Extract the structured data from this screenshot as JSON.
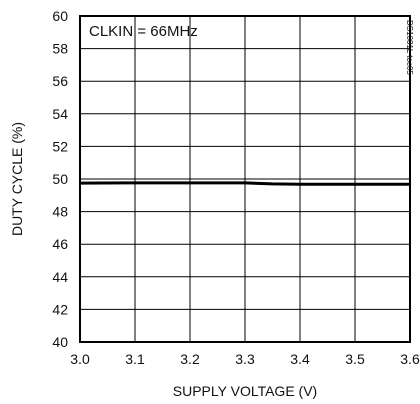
{
  "chart_data": {
    "type": "line",
    "title": "",
    "xlabel": "SUPPLY VOLTAGE (V)",
    "ylabel": "DUTY CYCLE (%)",
    "xlim": [
      3.0,
      3.6
    ],
    "ylim": [
      40,
      60
    ],
    "x_ticks": [
      "3.0",
      "3.1",
      "3.2",
      "3.3",
      "3.4",
      "3.5",
      "3.6"
    ],
    "y_ticks": [
      "40",
      "42",
      "44",
      "46",
      "48",
      "50",
      "52",
      "54",
      "56",
      "58",
      "60"
    ],
    "grid": true,
    "annotation": "CLKIN = 66MHz",
    "watermark": "DS1081L toc05",
    "series": [
      {
        "color": "#000000",
        "x": [
          3.0,
          3.1,
          3.2,
          3.3,
          3.35,
          3.4,
          3.5,
          3.6
        ],
        "y": [
          49.75,
          49.76,
          49.76,
          49.76,
          49.7,
          49.68,
          49.68,
          49.68
        ]
      }
    ]
  }
}
